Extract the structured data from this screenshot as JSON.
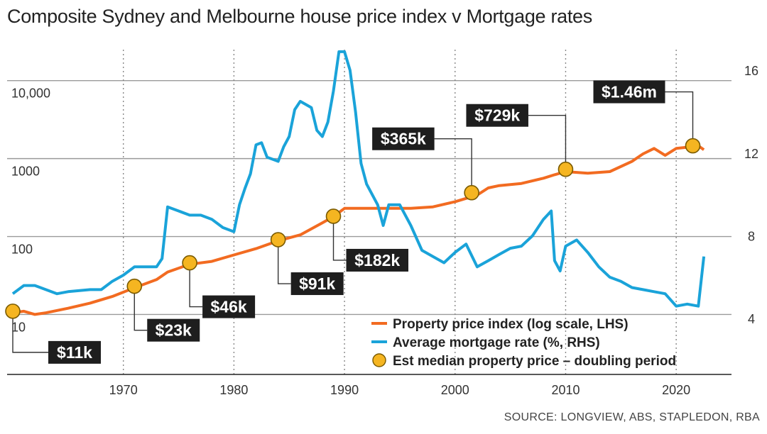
{
  "title": "Composite Sydney and Melbourne house price index v Mortgage rates",
  "source": "SOURCE: LONGVIEW, ABS, STAPLEDON, RBA",
  "colors": {
    "price": "#f26b21",
    "rate": "#1aa3d9",
    "point": "#f5b521",
    "point_stroke": "#7a5a00",
    "label_bg": "#1e1e1e",
    "grid": "#9a9a9a"
  },
  "chart_data": {
    "type": "line",
    "title": "Composite Sydney and Melbourne house price index v Mortgage rates",
    "x_range": [
      1960,
      2025
    ],
    "x_ticks": [
      1970,
      1980,
      1990,
      2000,
      2010,
      2020
    ],
    "y_left": {
      "scale": "log",
      "range": [
        1.7,
        25000
      ],
      "ticks": [
        10,
        100,
        1000,
        10000
      ],
      "tick_labels": [
        "10",
        "100",
        "1000",
        "10,000"
      ]
    },
    "y_right": {
      "scale": "linear",
      "range": [
        1.3,
        17.0
      ],
      "ticks": [
        4,
        8,
        12,
        16
      ],
      "tick_labels": [
        "4",
        "8",
        "12",
        "16"
      ]
    },
    "grid": "horizontal solid, vertical dotted",
    "legend_placement": "bottom-right",
    "series": [
      {
        "name": "Property price index (log scale, LHS)",
        "axis": "left",
        "x": [
          1960,
          1961,
          1962,
          1963,
          1965,
          1967,
          1969,
          1971,
          1973,
          1974,
          1976,
          1978,
          1980,
          1982,
          1984,
          1986,
          1988,
          1989,
          1990,
          1992,
          1994,
          1996,
          1998,
          2000,
          2002,
          2003,
          2004,
          2006,
          2008,
          2009,
          2010,
          2012,
          2014,
          2016,
          2017,
          2018,
          2019,
          2020,
          2021,
          2022,
          2022.5
        ],
        "values": [
          10.5,
          11,
          10,
          10.5,
          12,
          14,
          17,
          22,
          28,
          35,
          44,
          48,
          58,
          70,
          88,
          105,
          150,
          180,
          230,
          230,
          230,
          230,
          240,
          280,
          340,
          420,
          450,
          480,
          560,
          620,
          680,
          650,
          680,
          920,
          1150,
          1350,
          1100,
          1350,
          1400,
          1460,
          1300
        ]
      },
      {
        "name": "Average mortgage rate (%, RHS)",
        "axis": "right",
        "x": [
          1960,
          1961,
          1962,
          1964,
          1965,
          1967,
          1968,
          1969,
          1970,
          1971,
          1973,
          1973.5,
          1974,
          1975,
          1976,
          1977,
          1978,
          1979,
          1980,
          1980.5,
          1981,
          1981.5,
          1982,
          1982.5,
          1983,
          1984,
          1984.5,
          1985,
          1985.5,
          1986,
          1987,
          1987.5,
          1988,
          1988.5,
          1989,
          1989.5,
          1990,
          1990.5,
          1991,
          1991.5,
          1992,
          1993,
          1993.5,
          1994,
          1995,
          1996,
          1997,
          1998,
          1999,
          2000,
          2001,
          2002,
          2003,
          2004,
          2005,
          2006,
          2007,
          2008,
          2008.7,
          2009,
          2009.5,
          2010,
          2011,
          2012,
          2013,
          2014,
          2015,
          2016,
          2017,
          2018,
          2019,
          2020,
          2021,
          2022,
          2022.5
        ],
        "values": [
          5.2,
          5.6,
          5.6,
          5.2,
          5.3,
          5.4,
          5.4,
          5.8,
          6.1,
          6.5,
          6.5,
          6.9,
          9.4,
          9.2,
          9.0,
          9.0,
          8.8,
          8.4,
          8.2,
          9.5,
          10.3,
          11.0,
          12.4,
          12.5,
          11.8,
          11.6,
          12.3,
          12.8,
          14.1,
          14.5,
          14.2,
          13.1,
          12.8,
          13.5,
          15.0,
          16.9,
          16.9,
          16.0,
          14.0,
          11.5,
          10.5,
          9.5,
          8.5,
          9.5,
          9.5,
          8.5,
          7.3,
          7.0,
          6.7,
          7.2,
          7.6,
          6.5,
          6.8,
          7.1,
          7.4,
          7.5,
          8.0,
          8.8,
          9.2,
          6.8,
          6.3,
          7.5,
          7.8,
          7.2,
          6.5,
          6.0,
          5.8,
          5.5,
          5.4,
          5.3,
          5.2,
          4.6,
          4.7,
          4.6,
          7.0
        ]
      }
    ],
    "points": {
      "name": "Est median property price - doubling period",
      "items": [
        {
          "x": 1960,
          "y": 11,
          "label": "$11k",
          "label_pos": "bottom"
        },
        {
          "x": 1971,
          "y": 23,
          "label": "$23k",
          "label_pos": "right-down"
        },
        {
          "x": 1976,
          "y": 46,
          "label": "$46k",
          "label_pos": "right-down"
        },
        {
          "x": 1984,
          "y": 91,
          "label": "$91k",
          "label_pos": "right-down"
        },
        {
          "x": 1989,
          "y": 182,
          "label": "$182k",
          "label_pos": "right-down"
        },
        {
          "x": 2001.5,
          "y": 365,
          "label": "$365k",
          "label_pos": "left-up"
        },
        {
          "x": 2010,
          "y": 729,
          "label": "$729k",
          "label_pos": "left-up"
        },
        {
          "x": 2021.5,
          "y": 1460,
          "label": "$1.46m",
          "label_pos": "left-up"
        }
      ]
    },
    "legend": [
      {
        "kind": "line",
        "color_key": "price",
        "text": "Property price index (log scale, LHS)"
      },
      {
        "kind": "line",
        "color_key": "rate",
        "text": "Average mortgage rate (%, RHS)"
      },
      {
        "kind": "dot",
        "color_key": "point",
        "text": "Est median property price – doubling period"
      }
    ]
  }
}
